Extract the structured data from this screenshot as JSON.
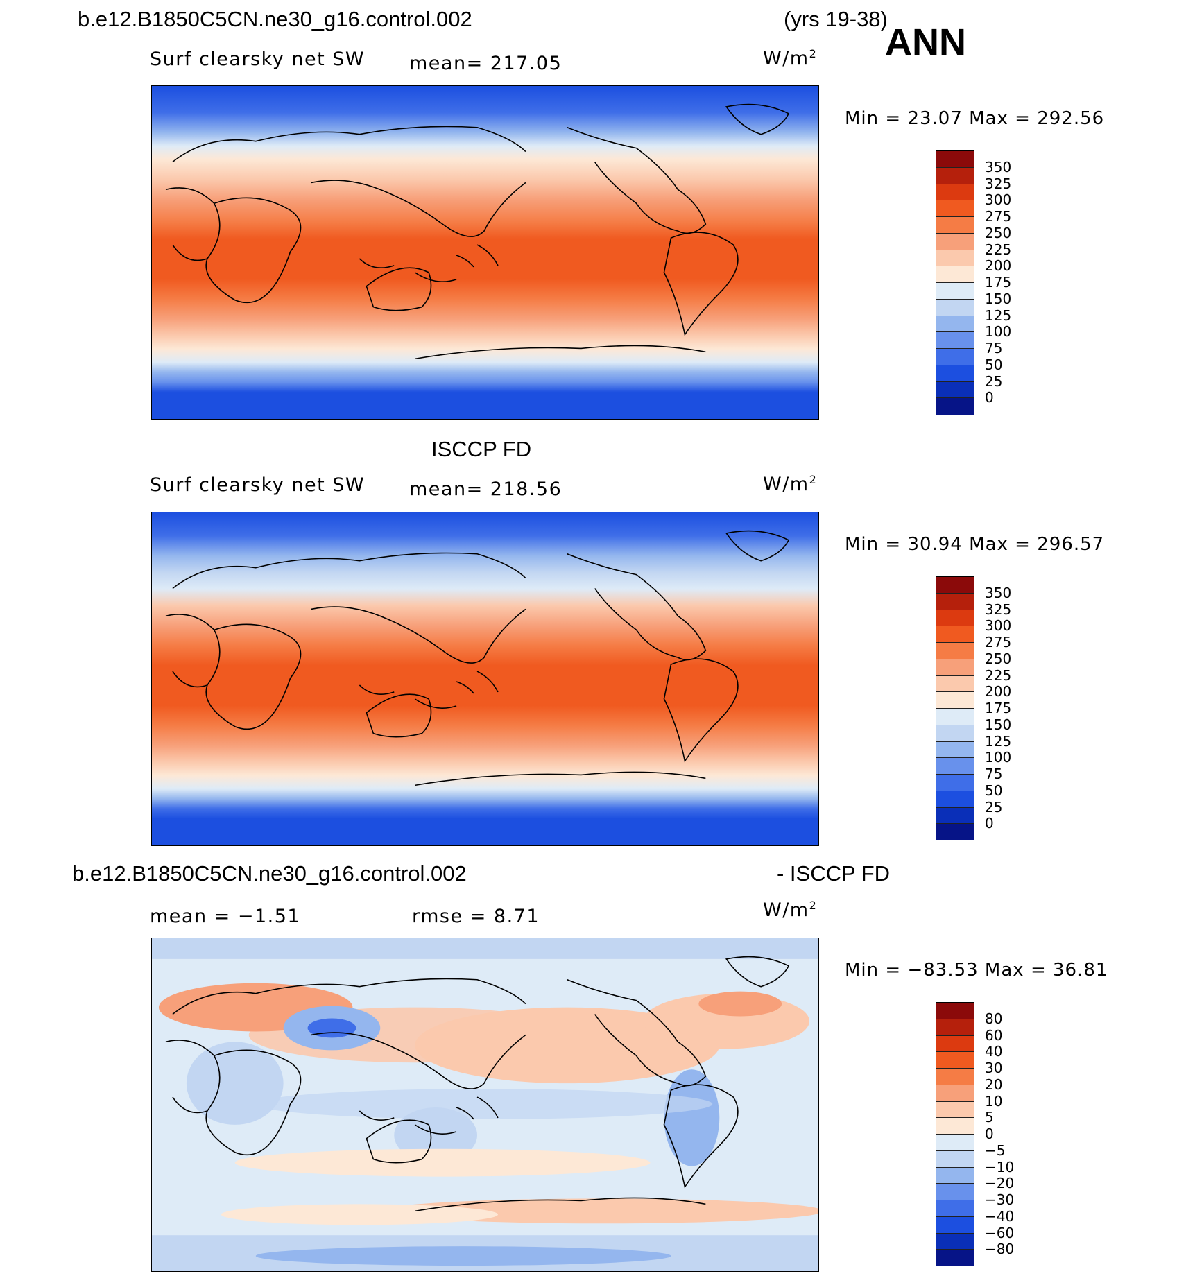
{
  "header": {
    "case": "b.e12.B1850C5CN.ne30_g16.control.002",
    "years": "(yrs 19-38)",
    "season": "ANN"
  },
  "panels": [
    {
      "title": "",
      "variable": "Surf clearsky net SW",
      "stat": "mean=  217.05",
      "unit": "W/m",
      "unit_sup": "2",
      "minmax": "Min =   23.07  Max  =  292.56",
      "colorbar": {
        "labels": [
          "350",
          "325",
          "300",
          "275",
          "250",
          "225",
          "200",
          "175",
          "150",
          "125",
          "100",
          "75",
          "50",
          "25",
          "0"
        ],
        "colors": [
          "#8b0a0a",
          "#b5200c",
          "#dc3a10",
          "#f05a20",
          "#f57c45",
          "#f7a07a",
          "#fbc9ad",
          "#fde8d6",
          "#deebf7",
          "#c2d6f2",
          "#94b6ee",
          "#6891ec",
          "#3f6ee8",
          "#1c4fe0",
          "#0a2fb8",
          "#061487"
        ]
      }
    },
    {
      "title": "ISCCP FD",
      "variable": "Surf clearsky net SW",
      "stat": "mean=  218.56",
      "unit": "W/m",
      "unit_sup": "2",
      "minmax": "Min =   30.94  Max  =  296.57",
      "colorbar": {
        "labels": [
          "350",
          "325",
          "300",
          "275",
          "250",
          "225",
          "200",
          "175",
          "150",
          "125",
          "100",
          "75",
          "50",
          "25",
          "0"
        ],
        "colors": [
          "#8b0a0a",
          "#b5200c",
          "#dc3a10",
          "#f05a20",
          "#f57c45",
          "#f7a07a",
          "#fbc9ad",
          "#fde8d6",
          "#deebf7",
          "#c2d6f2",
          "#94b6ee",
          "#6891ec",
          "#3f6ee8",
          "#1c4fe0",
          "#0a2fb8",
          "#061487"
        ]
      }
    },
    {
      "title_left": "b.e12.B1850C5CN.ne30_g16.control.002",
      "title_right": "- ISCCP FD",
      "stat_mean": "mean  =   −1.51",
      "stat_rmse": "rmse  =     8.71",
      "unit": "W/m",
      "unit_sup": "2",
      "minmax": "Min = −83.53  Max  =   36.81",
      "colorbar": {
        "labels": [
          "80",
          "60",
          "40",
          "30",
          "20",
          "10",
          "5",
          "0",
          "−5",
          "−10",
          "−20",
          "−30",
          "−40",
          "−60",
          "−80"
        ],
        "colors": [
          "#8b0a0a",
          "#b5200c",
          "#dc3a10",
          "#f05a20",
          "#f57c45",
          "#f7a07a",
          "#fbc9ad",
          "#fde8d6",
          "#deebf7",
          "#c2d6f2",
          "#94b6ee",
          "#6891ec",
          "#3f6ee8",
          "#1c4fe0",
          "#0a2fb8",
          "#061487"
        ]
      }
    }
  ],
  "chart_data": [
    {
      "type": "heatmap",
      "title": "b.e12.B1850C5CN.ne30_g16.control.002 (yrs 19-38) ANN",
      "variable": "Surf clearsky net SW",
      "units": "W/m2",
      "mean": 217.05,
      "min": 23.07,
      "max": 292.56,
      "contour_levels": [
        0,
        25,
        50,
        75,
        100,
        125,
        150,
        175,
        200,
        225,
        250,
        275,
        300,
        325,
        350
      ]
    },
    {
      "type": "heatmap",
      "title": "ISCCP FD",
      "variable": "Surf clearsky net SW",
      "units": "W/m2",
      "mean": 218.56,
      "min": 30.94,
      "max": 296.57,
      "contour_levels": [
        0,
        25,
        50,
        75,
        100,
        125,
        150,
        175,
        200,
        225,
        250,
        275,
        300,
        325,
        350
      ]
    },
    {
      "type": "heatmap",
      "title": "b.e12.B1850C5CN.ne30_g16.control.002 - ISCCP FD",
      "units": "W/m2",
      "mean": -1.51,
      "rmse": 8.71,
      "min": -83.53,
      "max": 36.81,
      "contour_levels": [
        -80,
        -60,
        -40,
        -30,
        -20,
        -10,
        -5,
        0,
        5,
        10,
        20,
        30,
        40,
        60,
        80
      ]
    }
  ]
}
